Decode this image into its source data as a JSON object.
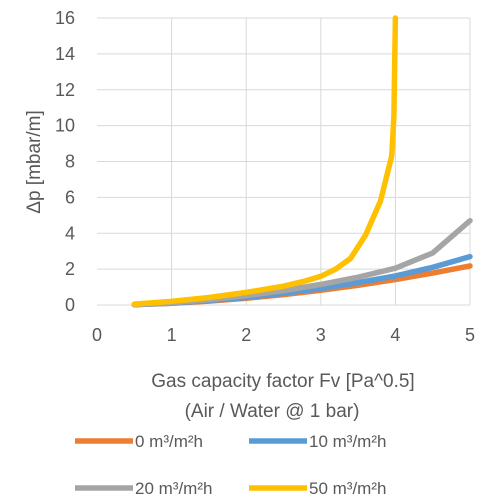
{
  "chart_data": {
    "type": "line",
    "xlabel": "Gas capacity factor Fv [Pa^0.5]",
    "xlabel_note": "(Air / Water @ 1 bar)",
    "ylabel": "Δp [mbar/m]",
    "xlim": [
      0,
      5
    ],
    "ylim": [
      0,
      16
    ],
    "xticks": [
      "0",
      "1",
      "2",
      "3",
      "4",
      "5"
    ],
    "yticks": [
      "0",
      "2",
      "4",
      "6",
      "8",
      "10",
      "12",
      "14",
      "16"
    ],
    "grid": true,
    "legend_position": "bottom",
    "series": [
      {
        "name": "0 m³/m²h",
        "color": "#ED7D31",
        "x": [
          0.5,
          1.0,
          1.5,
          2.0,
          2.5,
          3.0,
          3.5,
          4.0,
          4.5,
          5.0
        ],
        "y": [
          0.02,
          0.1,
          0.22,
          0.38,
          0.58,
          0.82,
          1.1,
          1.42,
          1.78,
          2.18
        ]
      },
      {
        "name": "10 m³/m²h",
        "color": "#5B9BD5",
        "x": [
          0.5,
          1.0,
          1.5,
          2.0,
          2.5,
          3.0,
          3.5,
          4.0,
          4.5,
          5.0
        ],
        "y": [
          0.02,
          0.1,
          0.25,
          0.42,
          0.65,
          0.92,
          1.25,
          1.62,
          2.1,
          2.7
        ]
      },
      {
        "name": "20 m³/m²h",
        "color": "#A5A5A5",
        "x": [
          0.5,
          1.0,
          1.5,
          2.0,
          2.5,
          3.0,
          3.5,
          4.0,
          4.5,
          5.0
        ],
        "y": [
          0.02,
          0.12,
          0.3,
          0.52,
          0.8,
          1.15,
          1.55,
          2.05,
          2.9,
          4.7
        ]
      },
      {
        "name": "50 m³/m²h",
        "color": "#FFC000",
        "x": [
          0.5,
          1.0,
          1.5,
          2.0,
          2.5,
          2.8,
          3.0,
          3.2,
          3.4,
          3.6,
          3.8,
          3.95,
          3.98,
          3.99,
          4.0
        ],
        "y": [
          0.05,
          0.2,
          0.42,
          0.7,
          1.05,
          1.35,
          1.6,
          2.0,
          2.6,
          3.9,
          5.8,
          8.3,
          10.5,
          13.5,
          16
        ]
      }
    ]
  }
}
